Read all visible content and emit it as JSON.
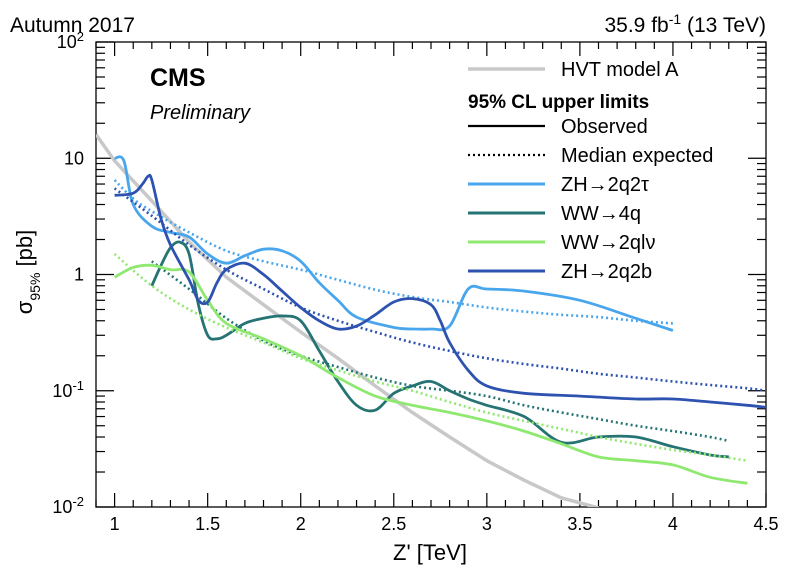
{
  "header": {
    "left_text": "Autumn 2017",
    "right_lumi": "35.9 fb",
    "right_exp": "-1",
    "right_energy": " (13 TeV)"
  },
  "cms": {
    "title": "CMS",
    "subtitle": "Preliminary"
  },
  "axes": {
    "x_label": "Z' [TeV]",
    "y_label_main": "σ",
    "y_label_sub": "95%",
    "y_label_unit": " [pb]"
  },
  "colors": {
    "hvt": "#c8c8c8",
    "zh2q2tau": "#49a6ec",
    "ww4q": "#267373",
    "ww2qlnu": "#8fe86f",
    "zh2q2b": "#2d52b0"
  },
  "chart_data": {
    "type": "line",
    "xlabel": "Z' [TeV]",
    "ylabel": "σ95% [pb]",
    "xlim": [
      0.9,
      4.5
    ],
    "ylim": [
      0.01,
      100
    ],
    "yscale": "log",
    "x_ticks": [
      "1",
      "1.5",
      "2",
      "2.5",
      "3",
      "3.5",
      "4",
      "4.5"
    ],
    "y_ticks": [
      {
        "base": "10",
        "exp": "-2"
      },
      {
        "base": "10",
        "exp": "-1"
      },
      {
        "base": "1",
        "exp": ""
      },
      {
        "base": "10",
        "exp": ""
      },
      {
        "base": "10",
        "exp": "2"
      }
    ],
    "legend": {
      "position": "top-right",
      "header": "95% CL upper limits",
      "entries": [
        "HVT model A",
        "Observed",
        "Median expected",
        "ZH→2q2τ",
        "WW→4q",
        "WW→2qlν",
        "ZH→2q2b"
      ]
    },
    "series": [
      {
        "name": "HVT model A",
        "style": "solid",
        "color": "#c8c8c8",
        "x": [
          0.9,
          1.0,
          1.2,
          1.4,
          1.6,
          1.8,
          2.0,
          2.2,
          2.4,
          2.6,
          2.8,
          3.0,
          3.2,
          3.4,
          3.6
        ],
        "y": [
          16,
          9.5,
          4.3,
          1.9,
          0.95,
          0.55,
          0.32,
          0.19,
          0.11,
          0.065,
          0.04,
          0.025,
          0.017,
          0.012,
          0.0098
        ]
      },
      {
        "name": "ZH→2q2τ",
        "style": "solid",
        "color": "#49a6ec",
        "x": [
          1.0,
          1.05,
          1.1,
          1.2,
          1.3,
          1.4,
          1.5,
          1.6,
          1.7,
          1.8,
          1.9,
          2.0,
          2.1,
          2.2,
          2.3,
          2.5,
          2.6,
          2.7,
          2.8,
          2.9,
          3.0,
          3.2,
          3.5,
          3.8,
          4.0
        ],
        "y": [
          10,
          9.5,
          4.0,
          2.6,
          2.3,
          2.1,
          1.5,
          1.25,
          1.45,
          1.65,
          1.6,
          1.3,
          0.85,
          0.6,
          0.43,
          0.35,
          0.34,
          0.34,
          0.36,
          0.75,
          0.75,
          0.72,
          0.6,
          0.42,
          0.33
        ]
      },
      {
        "name": "ZH→2q2τ",
        "style": "dotted",
        "color": "#49a6ec",
        "x": [
          1.0,
          1.1,
          1.2,
          1.4,
          1.6,
          1.8,
          2.0,
          2.2,
          2.4,
          2.6,
          2.8,
          3.0,
          3.2,
          3.4,
          3.6,
          3.8,
          4.0
        ],
        "y": [
          6.5,
          4.5,
          3.5,
          2.3,
          1.6,
          1.3,
          1.1,
          0.9,
          0.74,
          0.64,
          0.58,
          0.52,
          0.48,
          0.45,
          0.43,
          0.4,
          0.38
        ]
      },
      {
        "name": "WW→4q",
        "style": "solid",
        "color": "#267373",
        "x": [
          1.2,
          1.25,
          1.3,
          1.35,
          1.4,
          1.45,
          1.5,
          1.55,
          1.6,
          1.7,
          1.8,
          1.9,
          2.0,
          2.1,
          2.2,
          2.3,
          2.4,
          2.5,
          2.6,
          2.7,
          2.8,
          2.9,
          3.0,
          3.2,
          3.4,
          3.6,
          3.8,
          4.0,
          4.2,
          4.3
        ],
        "y": [
          0.8,
          1.2,
          1.7,
          1.9,
          1.5,
          0.55,
          0.3,
          0.28,
          0.3,
          0.38,
          0.42,
          0.44,
          0.4,
          0.22,
          0.12,
          0.075,
          0.068,
          0.095,
          0.11,
          0.12,
          0.1,
          0.085,
          0.075,
          0.06,
          0.036,
          0.04,
          0.04,
          0.033,
          0.028,
          0.027
        ]
      },
      {
        "name": "WW→4q",
        "style": "dotted",
        "color": "#267373",
        "x": [
          1.2,
          1.4,
          1.6,
          1.8,
          2.0,
          2.2,
          2.4,
          2.6,
          2.8,
          3.0,
          3.2,
          3.4,
          3.6,
          3.8,
          4.0,
          4.2,
          4.3
        ],
        "y": [
          1.3,
          0.75,
          0.42,
          0.27,
          0.2,
          0.16,
          0.13,
          0.11,
          0.1,
          0.09,
          0.075,
          0.065,
          0.057,
          0.05,
          0.045,
          0.04,
          0.037
        ]
      },
      {
        "name": "WW→2qlν",
        "style": "solid",
        "color": "#8fe86f",
        "x": [
          1.0,
          1.1,
          1.2,
          1.3,
          1.4,
          1.5,
          1.6,
          1.8,
          2.0,
          2.2,
          2.4,
          2.6,
          2.8,
          3.0,
          3.2,
          3.4,
          3.6,
          3.8,
          4.0,
          4.2,
          4.4
        ],
        "y": [
          0.95,
          1.15,
          1.2,
          1.1,
          1.05,
          0.6,
          0.38,
          0.28,
          0.2,
          0.13,
          0.09,
          0.075,
          0.065,
          0.055,
          0.045,
          0.035,
          0.027,
          0.025,
          0.023,
          0.018,
          0.016
        ]
      },
      {
        "name": "WW→2qlν",
        "style": "dotted",
        "color": "#8fe86f",
        "x": [
          1.0,
          1.2,
          1.4,
          1.6,
          1.8,
          2.0,
          2.2,
          2.4,
          2.6,
          2.8,
          3.0,
          3.2,
          3.4,
          3.6,
          3.8,
          4.0,
          4.2,
          4.4
        ],
        "y": [
          1.5,
          0.8,
          0.5,
          0.35,
          0.26,
          0.19,
          0.15,
          0.12,
          0.1,
          0.08,
          0.065,
          0.055,
          0.047,
          0.04,
          0.035,
          0.031,
          0.028,
          0.025
        ]
      },
      {
        "name": "ZH→2q2b",
        "style": "solid",
        "color": "#2d52b0",
        "x": [
          1.0,
          1.1,
          1.15,
          1.18,
          1.2,
          1.25,
          1.3,
          1.4,
          1.45,
          1.5,
          1.55,
          1.6,
          1.7,
          1.8,
          1.9,
          2.0,
          2.1,
          2.2,
          2.3,
          2.4,
          2.5,
          2.6,
          2.7,
          2.75,
          2.8,
          2.9,
          3.0,
          3.2,
          3.5,
          3.8,
          4.0,
          4.2,
          4.4,
          4.5
        ],
        "y": [
          4.8,
          5.0,
          6.0,
          7.0,
          6.5,
          3.0,
          1.8,
          0.9,
          0.6,
          0.58,
          0.85,
          1.1,
          1.25,
          1.0,
          0.72,
          0.52,
          0.4,
          0.34,
          0.36,
          0.45,
          0.58,
          0.62,
          0.55,
          0.4,
          0.26,
          0.15,
          0.11,
          0.095,
          0.09,
          0.085,
          0.085,
          0.08,
          0.075,
          0.072
        ]
      },
      {
        "name": "ZH→2q2b",
        "style": "dotted",
        "color": "#2d52b0",
        "x": [
          1.0,
          1.2,
          1.4,
          1.6,
          1.8,
          2.0,
          2.2,
          2.4,
          2.6,
          2.8,
          3.0,
          3.2,
          3.4,
          3.6,
          3.8,
          4.0,
          4.2,
          4.4,
          4.5
        ],
        "y": [
          5.5,
          3.2,
          1.8,
          1.1,
          0.75,
          0.52,
          0.4,
          0.32,
          0.26,
          0.22,
          0.19,
          0.17,
          0.155,
          0.14,
          0.13,
          0.12,
          0.112,
          0.105,
          0.1
        ]
      }
    ]
  }
}
